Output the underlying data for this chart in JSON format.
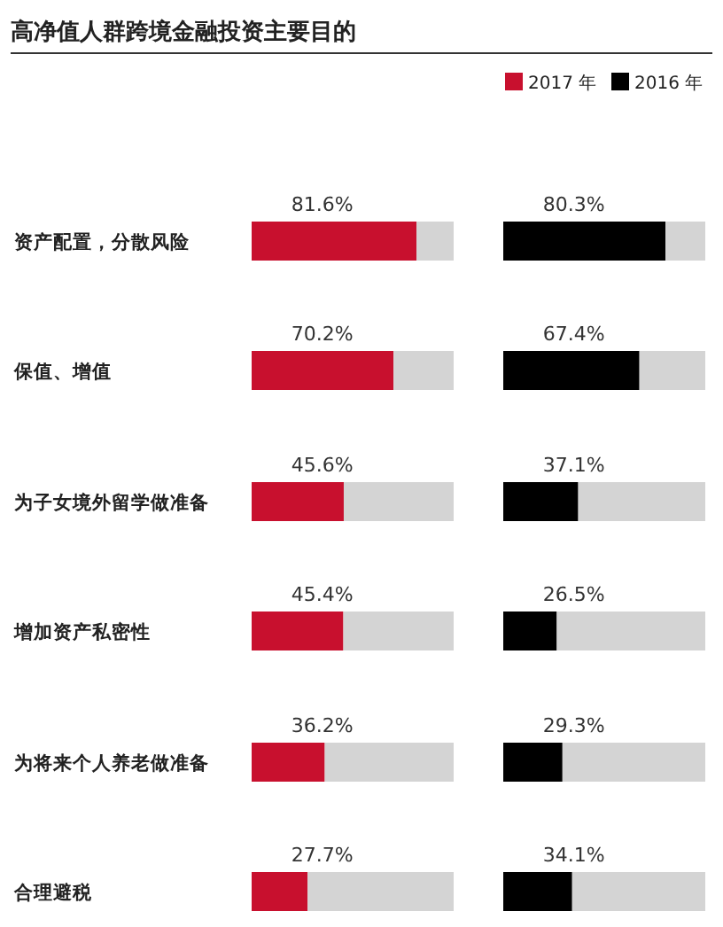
{
  "chart_data": [
    {
      "type": "bar",
      "orientation": "horizontal",
      "stacked": true,
      "title": "高净值人群跨境金融投资主要目的",
      "categories": [
        "资产配置，分散风险",
        "保值、增值",
        "为子女境外留学做准备",
        "增加资产私密性",
        "为将来个人养老做准备",
        "合理避税"
      ],
      "series": [
        {
          "name": "2017 年",
          "color": "#c8102e",
          "values": [
            81.6,
            70.2,
            45.6,
            45.4,
            36.2,
            27.7
          ],
          "value_labels": [
            "81.6%",
            "70.2%",
            "45.6%",
            "45.4%",
            "36.2%",
            "27.7%"
          ]
        },
        {
          "color": "#d4d4d4",
          "values": [
            18.4,
            29.8,
            54.4,
            54.6,
            63.8,
            72.3
          ]
        }
      ],
      "xlim": [
        0,
        100
      ],
      "tick_labels": "y",
      "legend": "top right"
    },
    {
      "type": "bar",
      "orientation": "horizontal",
      "stacked": true,
      "categories": [
        null,
        null,
        null,
        null,
        null,
        null
      ],
      "series": [
        {
          "name": "2016 年",
          "color": "#000000",
          "values": [
            80.3,
            67.4,
            37.1,
            26.5,
            29.3,
            34.1
          ],
          "value_labels": [
            "80.3%",
            "67.4%",
            "37.1%",
            "26.5%",
            "29.3%",
            "34.1%"
          ]
        },
        {
          "color": "#d4d4d4",
          "values": [
            19.7,
            32.6,
            62.9,
            73.5,
            70.7,
            65.9
          ]
        }
      ],
      "xlim": [
        0,
        100
      ],
      "tick_labels": false,
      "legend": "top right"
    }
  ]
}
